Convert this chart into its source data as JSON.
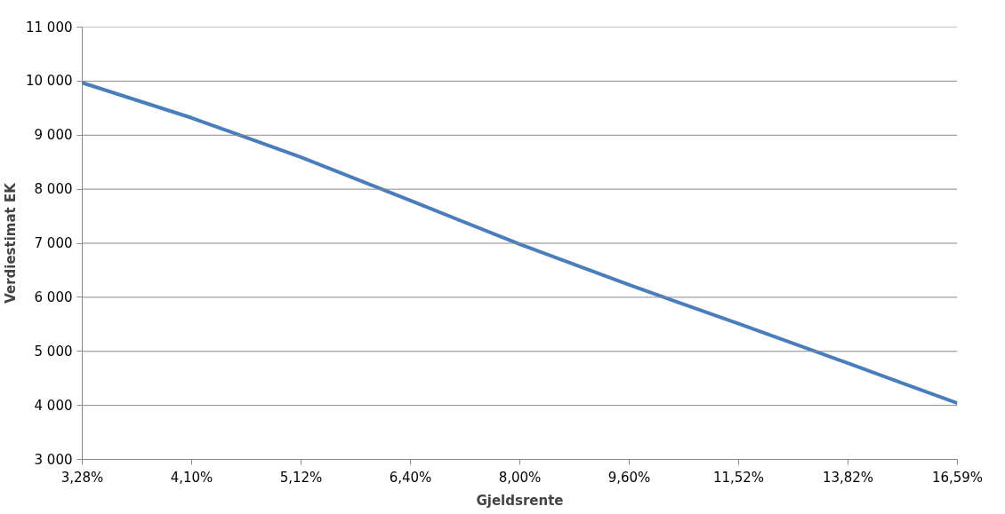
{
  "chart_data": {
    "type": "line",
    "xlabel": "Gjeldsrente",
    "ylabel": "Verdiestimat EK",
    "categories": [
      "3,28%",
      "4,10%",
      "5,12%",
      "6,40%",
      "8,00%",
      "9,60%",
      "11,52%",
      "13,82%",
      "16,59%"
    ],
    "series": [
      {
        "color": "#4a7ebb",
        "values": [
          9970,
          9320,
          8590,
          7790,
          6980,
          6230,
          5510,
          4780,
          4040
        ]
      }
    ],
    "ylim": [
      3000,
      11000
    ],
    "yticks": [
      {
        "value": 3000,
        "label": "3 000"
      },
      {
        "value": 4000,
        "label": "4 000"
      },
      {
        "value": 5000,
        "label": "5 000"
      },
      {
        "value": 6000,
        "label": "6 000"
      },
      {
        "value": 7000,
        "label": "7 000"
      },
      {
        "value": 8000,
        "label": "8 000"
      },
      {
        "value": 9000,
        "label": "9 000"
      },
      {
        "value": 10000,
        "label": "10 000"
      },
      {
        "value": 11000,
        "label": "11 000"
      }
    ],
    "grid": "y",
    "marker": "none",
    "line_style": "solid"
  }
}
